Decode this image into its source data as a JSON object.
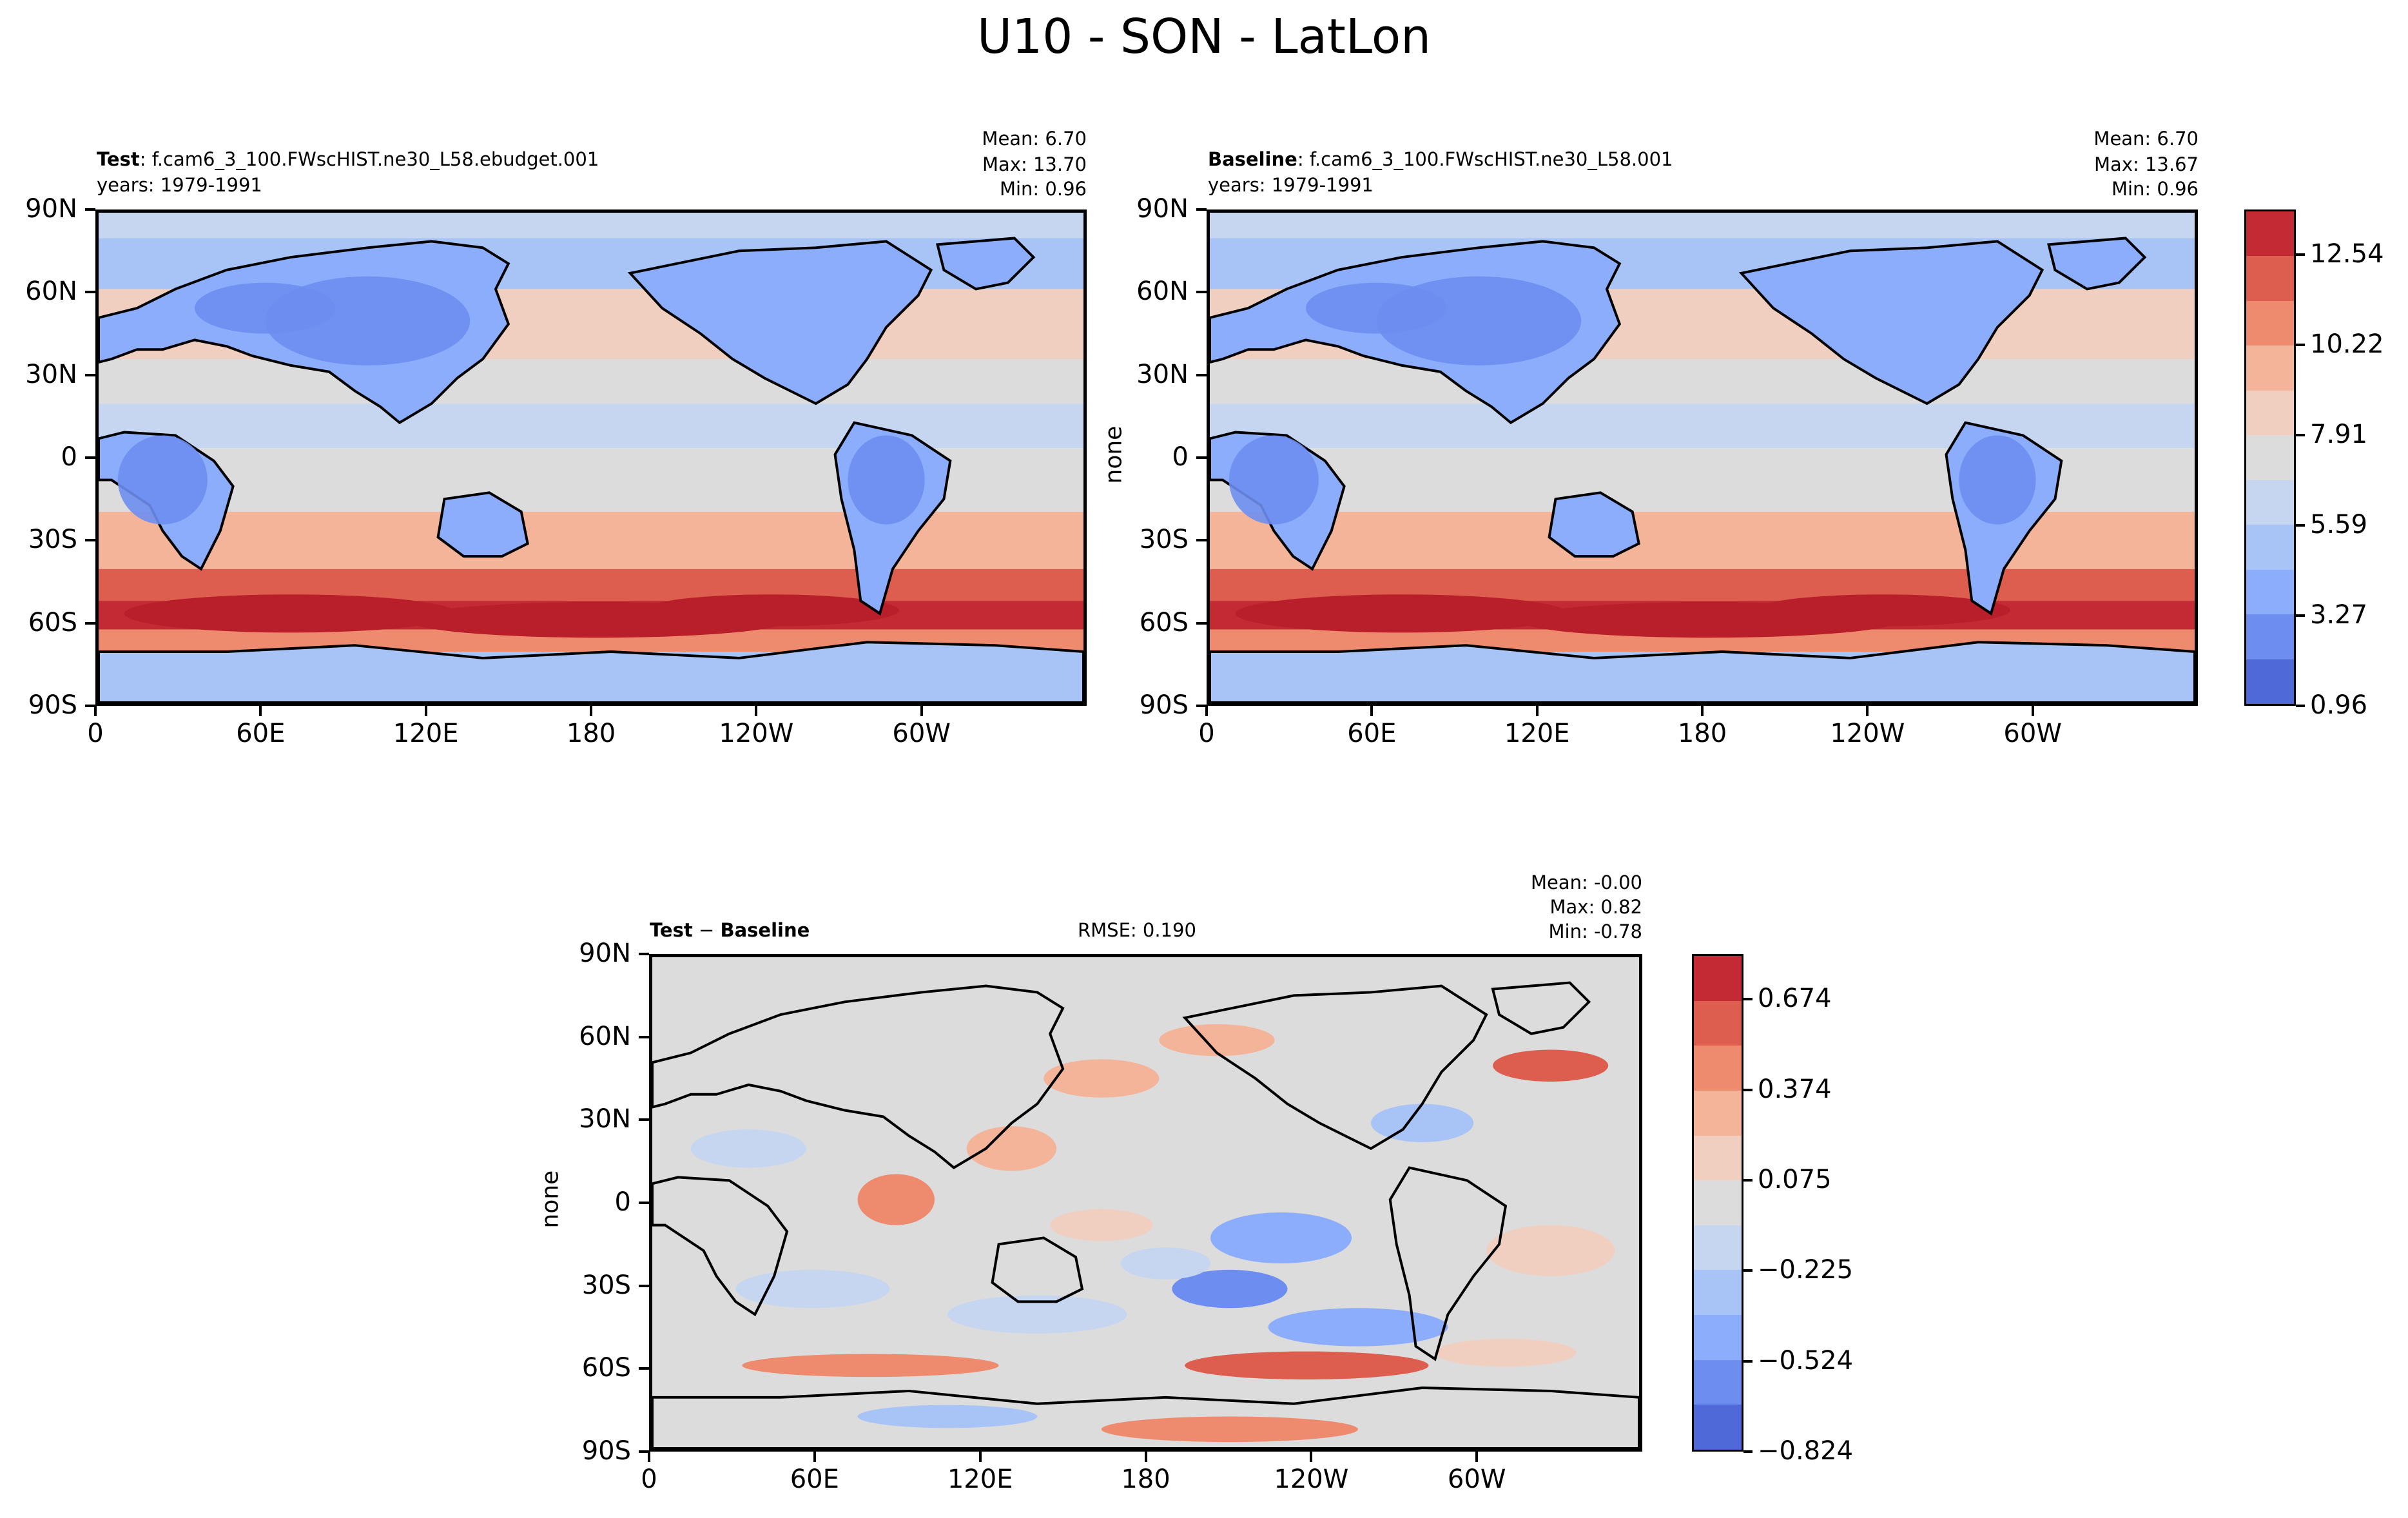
{
  "figure": {
    "title": "U10 - SON - LatLon"
  },
  "panels": {
    "test": {
      "name_bold": "Test",
      "case": ": f.cam6_3_100.FWscHIST.ne30_L58.ebudget.001",
      "years": "years: 1979-1991",
      "mean": "Mean:  6.70",
      "max": "Max: 13.70",
      "min": "Min:  0.96"
    },
    "baseline": {
      "name_bold": "Baseline",
      "case": ": f.cam6_3_100.FWscHIST.ne30_L58.001",
      "years": "years: 1979-1991",
      "mean": "Mean:  6.70",
      "max": "Max: 13.67",
      "min": "Min:  0.96",
      "ylabel": "none"
    },
    "diff": {
      "name_bold_a": "Test",
      "op": " − ",
      "name_bold_b": "Baseline",
      "rmse": "RMSE: 0.190",
      "mean": "Mean: -0.00",
      "max": "Max:  0.82",
      "min": "Min: -0.78",
      "ylabel": "none"
    }
  },
  "axes": {
    "lat_ticks": [
      "90N",
      "60N",
      "30N",
      "0",
      "30S",
      "60S",
      "90S"
    ],
    "lon_ticks": [
      "0",
      "60E",
      "120E",
      "180",
      "120W",
      "60W"
    ]
  },
  "colorbars": {
    "field": {
      "labels": [
        "12.54",
        "10.22",
        "7.91",
        "5.59",
        "3.27",
        "0.96"
      ],
      "colors": [
        "#c42a33",
        "#dd5e4f",
        "#ee8b6e",
        "#f4b49a",
        "#f1cfc0",
        "#dcdcdc",
        "#c6d6f0",
        "#a8c4f7",
        "#8cadfb",
        "#6d8ef0",
        "#4f6ad8"
      ]
    },
    "diff": {
      "labels": [
        "0.674",
        "0.374",
        "0.075",
        "−0.225",
        "−0.524",
        "−0.824"
      ],
      "colors": [
        "#c42a33",
        "#dd5e4f",
        "#ee8b6e",
        "#f4b49a",
        "#f1cfc0",
        "#dcdcdc",
        "#c6d6f0",
        "#a8c4f7",
        "#8cadfb",
        "#6d8ef0",
        "#4f6ad8"
      ]
    }
  }
}
